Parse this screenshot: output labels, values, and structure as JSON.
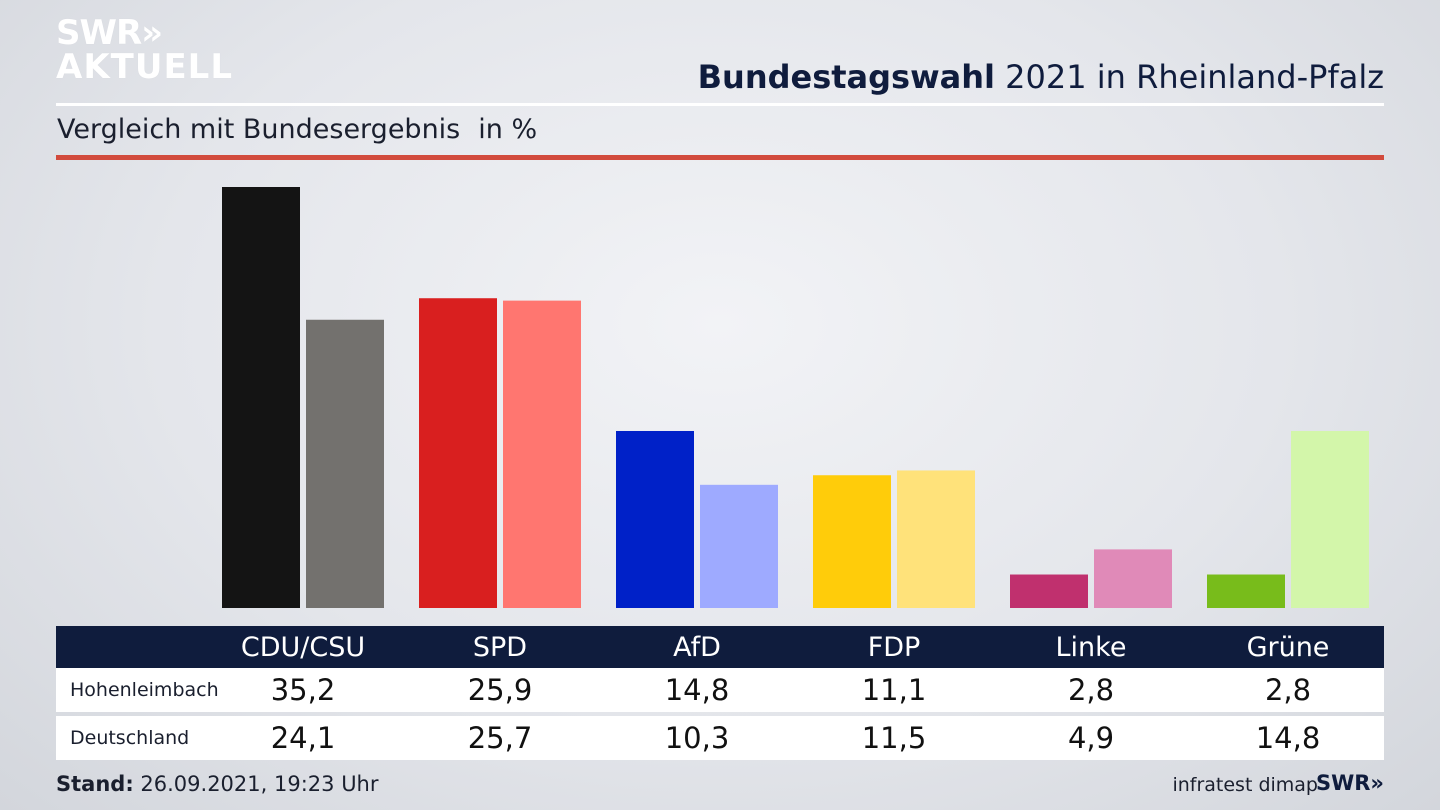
{
  "brand": {
    "line1": "SWR",
    "arrows": "»",
    "line2": "AKTUELL",
    "small": "SWR"
  },
  "header": {
    "title_bold": "Bundestagswahl",
    "title_rest": "2021 in Rheinland-Pfalz"
  },
  "subtitle": {
    "text": "Vergleich mit Bundesergebnis",
    "unit": "in %"
  },
  "colors": {
    "primary": [
      "#141414",
      "#d91f1f",
      "#0021c8",
      "#ffcc0a",
      "#c0306e",
      "#78bc1b"
    ],
    "secondary": [
      "#73716e",
      "#ff7670",
      "#9eaaff",
      "#ffe27a",
      "#e08ab8",
      "#d3f6aa"
    ],
    "header_bg": "#0f1c3d",
    "rule": "#d24b3d"
  },
  "chart_data": {
    "type": "bar",
    "categories": [
      "CDU/CSU",
      "SPD",
      "AfD",
      "FDP",
      "Linke",
      "Grüne"
    ],
    "series": [
      {
        "name": "Hohenleimbach",
        "values": [
          35.2,
          25.9,
          14.8,
          11.1,
          2.8,
          2.8
        ]
      },
      {
        "name": "Deutschland",
        "values": [
          24.1,
          25.7,
          10.3,
          11.5,
          4.9,
          14.8
        ]
      }
    ],
    "ylim": [
      0,
      35.2
    ],
    "grid": false
  },
  "table": {
    "rows": [
      {
        "label": "Hohenleimbach",
        "values": [
          "35,2",
          "25,9",
          "14,8",
          "11,1",
          "2,8",
          "2,8"
        ]
      },
      {
        "label": "Deutschland",
        "values": [
          "24,1",
          "25,7",
          "10,3",
          "11,5",
          "4,9",
          "14,8"
        ]
      }
    ]
  },
  "footer": {
    "stand_label": "Stand:",
    "stand_value": "26.09.2021, 19:23 Uhr",
    "source": "infratest dimap"
  }
}
